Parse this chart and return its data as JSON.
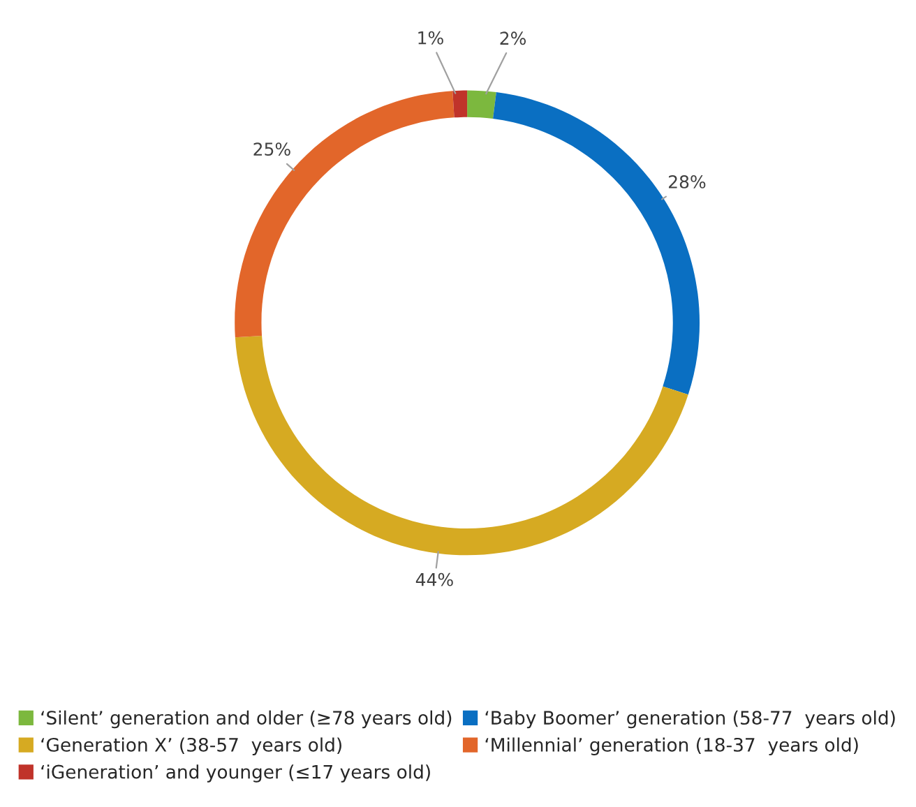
{
  "chart_data": {
    "type": "donut",
    "categories": [
      "‘Silent’ generation and older (≥78 years old)",
      "‘Baby Boomer’ generation (58-77  years old)",
      "‘Generation X’ (38-57  years old)",
      "‘Millennial’ generation (18-37  years old)",
      "‘iGeneration’ and younger (≤17 years old)"
    ],
    "values": [
      2,
      28,
      44,
      25,
      1
    ],
    "colors": [
      "#7cb83e",
      "#0a6fc2",
      "#d6aa22",
      "#e2662a",
      "#c0332a"
    ],
    "value_labels": [
      "2%",
      "28%",
      "44%",
      "25%",
      "1%"
    ],
    "legend": "bottom"
  }
}
